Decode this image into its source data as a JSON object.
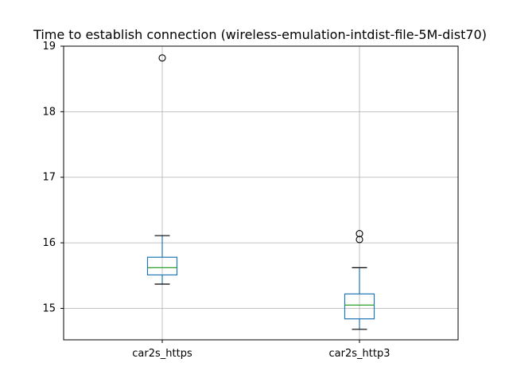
{
  "chart_data": {
    "type": "box",
    "title": "Time to establish connection (wireless-emulation-intdist-file-5M-dist70)",
    "xlabel": "",
    "ylabel": "",
    "categories": [
      "car2s_https",
      "car2s_http3"
    ],
    "ylim": [
      14.52,
      19.0
    ],
    "yticks": [
      15,
      16,
      17,
      18,
      19
    ],
    "grid": true,
    "boxes": [
      {
        "name": "car2s_https",
        "whisker_low": 15.37,
        "q1": 15.51,
        "median": 15.62,
        "q3": 15.78,
        "whisker_high": 16.11,
        "outliers": [
          18.82
        ]
      },
      {
        "name": "car2s_http3",
        "whisker_low": 14.68,
        "q1": 14.84,
        "median": 15.05,
        "q3": 15.22,
        "whisker_high": 15.62,
        "outliers": [
          16.05,
          16.14
        ]
      }
    ],
    "colors": {
      "box": "#1f77b4",
      "median": "#2ca02c",
      "grid": "#b0b0b0",
      "axis": "#000000"
    }
  }
}
